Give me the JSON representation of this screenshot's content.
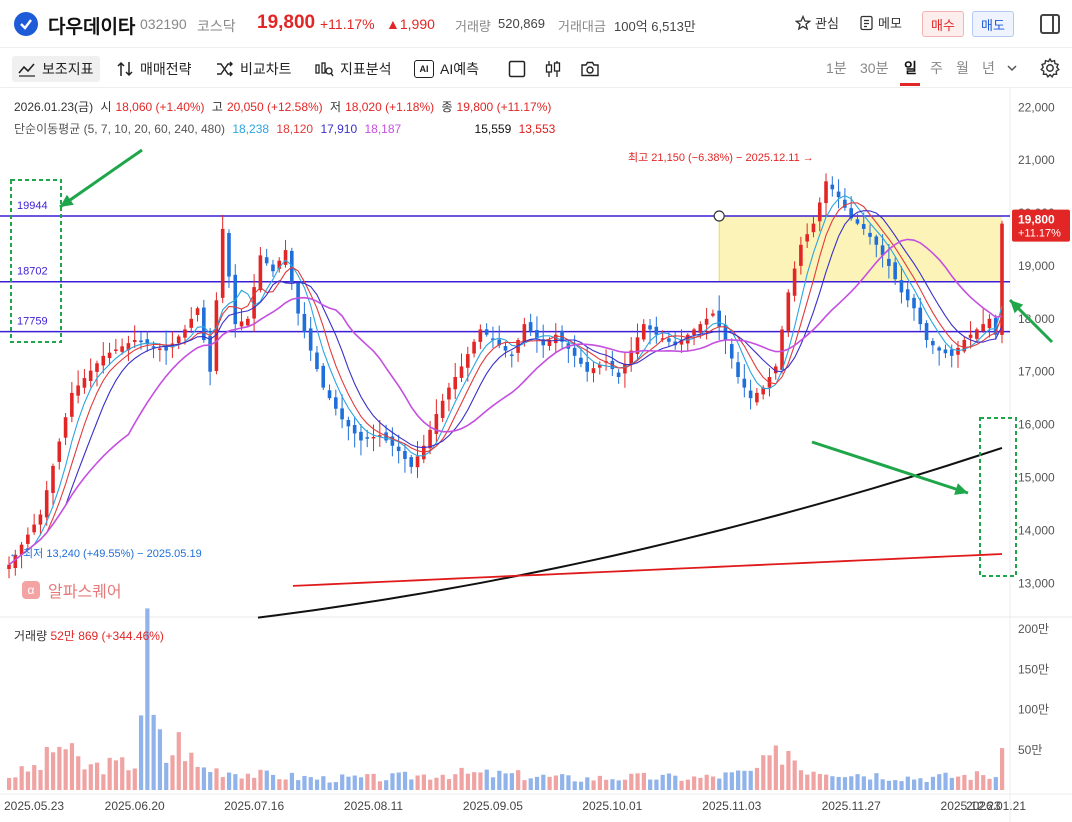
{
  "header": {
    "name": "다우데이타",
    "code": "032190",
    "market": "코스닥",
    "price": "19,800",
    "change_pct": "+11.17%",
    "change_abs": "▲1,990",
    "volume_label": "거래량",
    "volume_value": "520,869",
    "amount_label": "거래대금",
    "amount_value": "100억 6,513만",
    "watch_label": "관심",
    "memo_label": "메모",
    "buy_label": "매수",
    "sell_label": "매도"
  },
  "toolbar": {
    "indicator": "보조지표",
    "strategy": "매매전략",
    "compare": "비교차트",
    "analysis": "지표분석",
    "ai_badge": "AI",
    "ai_predict": "AI예측",
    "periods": [
      "1분",
      "30분",
      "일",
      "주",
      "월",
      "년"
    ],
    "active_period": "일"
  },
  "legend": {
    "date": "2026.01.23(금)",
    "open_label": "시",
    "open": "18,060 (+1.40%)",
    "high_label": "고",
    "high": "20,050 (+12.58%)",
    "low_label": "저",
    "low": "18,020 (+1.18%)",
    "close_label": "종",
    "close": "19,800 (+11.17%)",
    "ma_label": "단순이동평균 (5, 7, 10, 20, 60, 240, 480)",
    "ma_values": [
      "18,238",
      "18,120",
      "17,910",
      "18,187",
      "15,559",
      "13,553"
    ],
    "volume_label": "거래량",
    "volume_value": "52만 869 (+344.46%)"
  },
  "watermark": "알파스퀘어",
  "colors": {
    "up": "#e22626",
    "down": "#1e6fd9",
    "ma5": "#2aa6e0",
    "ma7": "#e23b3b",
    "ma10": "#3a2fc9",
    "ma20": "#c54fe0",
    "ma240": "#111111",
    "ma480": "#e01a1a",
    "hline": "#3b1fd6",
    "zone": "#fbf3b8",
    "annot": "#1fa64a"
  },
  "chart_data": {
    "type": "candlestick",
    "price_axis": {
      "ylim": [
        12400,
        22100
      ],
      "ticks": [
        "22,000",
        "21,000",
        "20,000",
        "19,000",
        "18,000",
        "17,000",
        "16,000",
        "15,000",
        "14,000",
        "13,000"
      ]
    },
    "volume_axis": {
      "ylim": [
        0,
        2050000
      ],
      "ticks": [
        "200만",
        "150만",
        "100만",
        "50만"
      ]
    },
    "x_tick_labels": [
      "2025.05.23",
      "2025.06.20",
      "2025.07.16",
      "2025.08.11",
      "2025.09.05",
      "2025.10.01",
      "2025.11.03",
      "2025.11.27",
      "2025.12.23",
      "2026.01.21"
    ],
    "horizontal_lines": [
      {
        "label": "19944",
        "value": 19944
      },
      {
        "label": "18702",
        "value": 18702
      },
      {
        "label": "17759",
        "value": 17759
      }
    ],
    "zone": {
      "from": 18702,
      "to": 19944
    },
    "annotations": {
      "high": "최고 21,150 (−6.38%) − 2025.12.11 →",
      "low": "← 최저 13,240 (+49.55%) − 2025.05.19"
    },
    "last_price_tag": {
      "price": "19,800",
      "pct": "+11.17%",
      "value": 19800
    },
    "ma240_range": [
      12350,
      15559
    ],
    "ma480_range": [
      12950,
      13553
    ],
    "close_keypoints": [
      [
        0,
        13350
      ],
      [
        5,
        14300
      ],
      [
        10,
        16600
      ],
      [
        15,
        17300
      ],
      [
        20,
        17600
      ],
      [
        25,
        17400
      ],
      [
        28,
        17800
      ],
      [
        30,
        18200
      ],
      [
        32,
        17000
      ],
      [
        34,
        19700
      ],
      [
        36,
        17900
      ],
      [
        38,
        18000
      ],
      [
        40,
        19200
      ],
      [
        42,
        18900
      ],
      [
        44,
        19300
      ],
      [
        46,
        18100
      ],
      [
        48,
        17400
      ],
      [
        50,
        16700
      ],
      [
        53,
        16100
      ],
      [
        56,
        15700
      ],
      [
        59,
        15800
      ],
      [
        62,
        15500
      ],
      [
        64,
        15200
      ],
      [
        66,
        15600
      ],
      [
        68,
        16200
      ],
      [
        70,
        16700
      ],
      [
        72,
        17100
      ],
      [
        75,
        17800
      ],
      [
        78,
        17500
      ],
      [
        80,
        17300
      ],
      [
        82,
        17900
      ],
      [
        85,
        17500
      ],
      [
        87,
        17700
      ],
      [
        90,
        17300
      ],
      [
        92,
        17000
      ],
      [
        95,
        17200
      ],
      [
        97,
        16900
      ],
      [
        99,
        17400
      ],
      [
        101,
        17900
      ],
      [
        103,
        17700
      ],
      [
        106,
        17500
      ],
      [
        109,
        17800
      ],
      [
        112,
        18100
      ],
      [
        114,
        17600
      ],
      [
        116,
        16900
      ],
      [
        118,
        16500
      ],
      [
        120,
        16700
      ],
      [
        122,
        17100
      ],
      [
        124,
        18500
      ],
      [
        126,
        19400
      ],
      [
        128,
        19800
      ],
      [
        130,
        20600
      ],
      [
        132,
        20300
      ],
      [
        134,
        19900
      ],
      [
        136,
        19700
      ],
      [
        138,
        19400
      ],
      [
        140,
        19000
      ],
      [
        142,
        18500
      ],
      [
        144,
        18200
      ],
      [
        146,
        17600
      ],
      [
        148,
        17400
      ],
      [
        150,
        17300
      ],
      [
        152,
        17600
      ],
      [
        154,
        17800
      ],
      [
        156,
        18000
      ],
      [
        157,
        17700
      ],
      [
        158,
        19800
      ]
    ],
    "volume_keypoints": [
      [
        0,
        180000
      ],
      [
        5,
        320000
      ],
      [
        8,
        620000
      ],
      [
        12,
        300000
      ],
      [
        20,
        350000
      ],
      [
        22,
        1900000
      ],
      [
        23,
        900000
      ],
      [
        25,
        400000
      ],
      [
        27,
        650000
      ],
      [
        30,
        300000
      ],
      [
        40,
        200000
      ],
      [
        50,
        150000
      ],
      [
        60,
        160000
      ],
      [
        70,
        220000
      ],
      [
        80,
        200000
      ],
      [
        90,
        150000
      ],
      [
        100,
        170000
      ],
      [
        110,
        160000
      ],
      [
        118,
        230000
      ],
      [
        124,
        550000
      ],
      [
        126,
        300000
      ],
      [
        135,
        220000
      ],
      [
        145,
        160000
      ],
      [
        155,
        200000
      ],
      [
        157,
        180000
      ],
      [
        158,
        520869
      ]
    ],
    "n_candles": 159
  }
}
